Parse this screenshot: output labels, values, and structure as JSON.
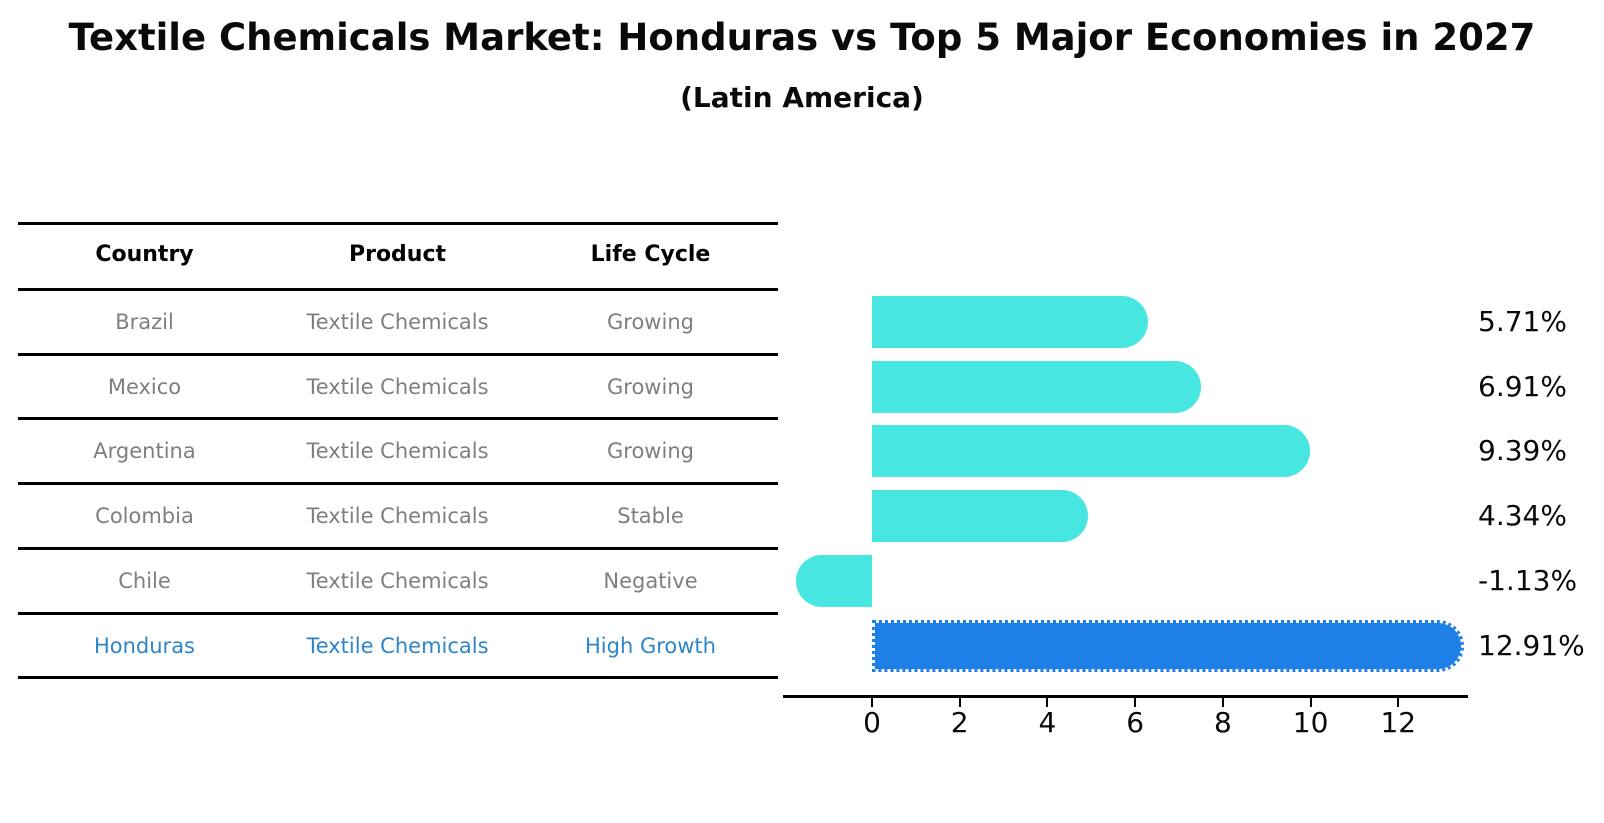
{
  "chart_data": {
    "type": "bar",
    "orientation": "horizontal",
    "title": "Textile Chemicals Market: Honduras vs Top 5 Major Economies in 2027",
    "subtitle": "(Latin America)",
    "categories": [
      "Brazil",
      "Mexico",
      "Argentina",
      "Colombia",
      "Chile",
      "Honduras"
    ],
    "values": [
      5.71,
      6.91,
      9.39,
      4.34,
      -1.13,
      12.91
    ],
    "value_labels": [
      "5.71%",
      "6.91%",
      "9.39%",
      "4.34%",
      "-1.13%",
      "12.91%"
    ],
    "x_ticks": [
      "0",
      "2",
      "4",
      "6",
      "8",
      "10",
      "12"
    ],
    "x_tick_values": [
      0,
      2,
      4,
      6,
      8,
      10,
      12
    ],
    "xlim": [
      -2.0,
      13.6
    ],
    "grid": false,
    "bar_color": "#47e6e0",
    "highlight_color": "#1e7fe6",
    "highlight_index": 5,
    "highlight_border_style": "dotted"
  },
  "table": {
    "headers": [
      "Country",
      "Product",
      "Life Cycle"
    ],
    "rows": [
      {
        "country": "Brazil",
        "product": "Textile Chemicals",
        "life_cycle": "Growing",
        "highlight": false
      },
      {
        "country": "Mexico",
        "product": "Textile Chemicals",
        "life_cycle": "Growing",
        "highlight": false
      },
      {
        "country": "Argentina",
        "product": "Textile Chemicals",
        "life_cycle": "Growing",
        "highlight": false
      },
      {
        "country": "Colombia",
        "product": "Textile Chemicals",
        "life_cycle": "Stable",
        "highlight": false
      },
      {
        "country": "Chile",
        "product": "Textile Chemicals",
        "life_cycle": "Negative",
        "highlight": false
      },
      {
        "country": "Honduras",
        "product": "Textile Chemicals",
        "life_cycle": "High Growth",
        "highlight": true
      }
    ]
  },
  "colors": {
    "background": "#ffffff",
    "bar": "#47e6e0",
    "highlight_bar": "#1e7fe6",
    "table_text": "#7f7f7f",
    "highlight_text": "#2e86c9",
    "header_text": "#000000",
    "axis": "#000000"
  }
}
